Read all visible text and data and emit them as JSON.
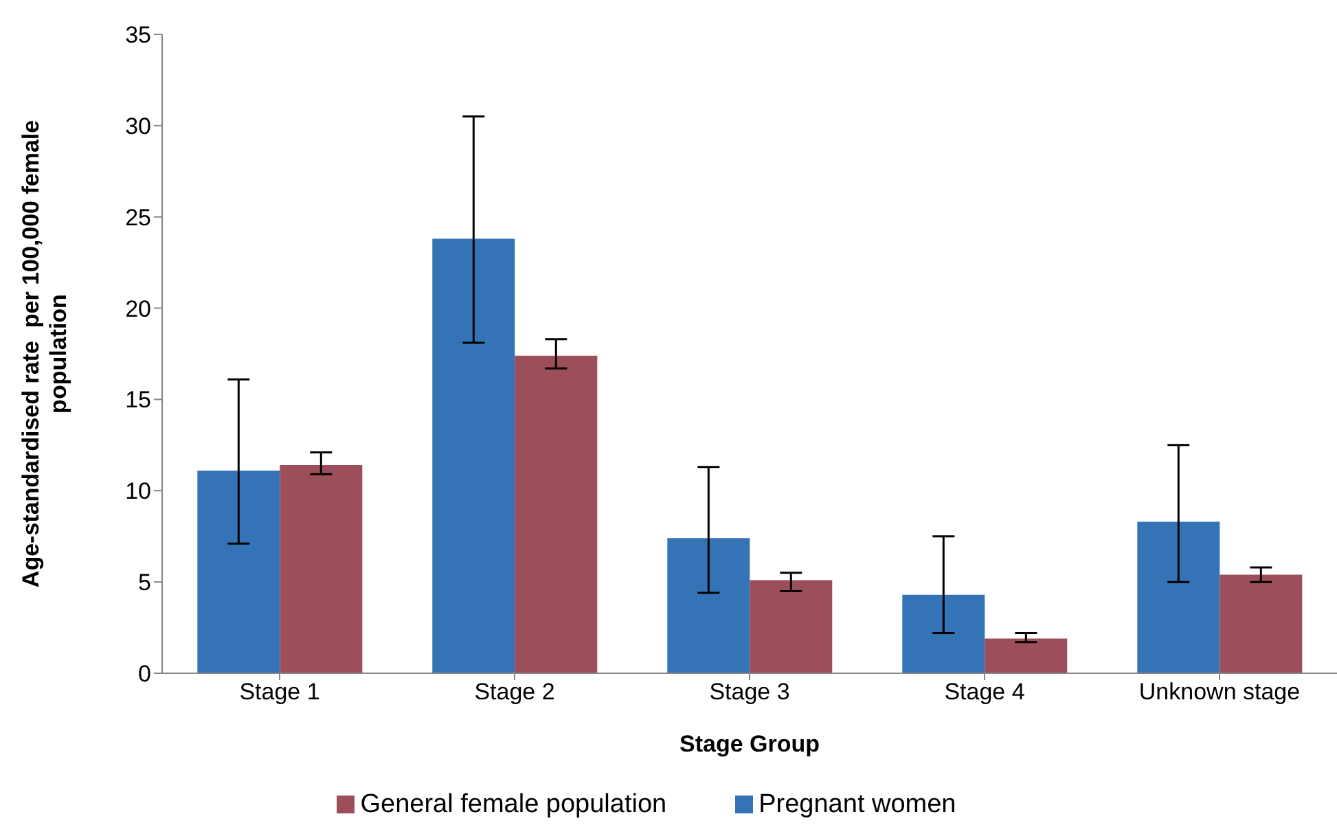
{
  "chart_data": {
    "type": "bar",
    "xlabel": "Stage Group",
    "ylabel": "Age-standardised rate  per 100,000 female population",
    "categories": [
      "Stage 1",
      "Stage 2",
      "Stage 3",
      "Stage 4",
      "Unknown stage"
    ],
    "series": [
      {
        "name": "Pregnant women",
        "color": "#3474b6",
        "values": [
          11.1,
          23.8,
          7.4,
          4.3,
          8.3
        ],
        "errors": [
          [
            7.1,
            16.1
          ],
          [
            18.1,
            30.5
          ],
          [
            4.4,
            11.3
          ],
          [
            2.2,
            7.5
          ],
          [
            5.0,
            12.5
          ]
        ]
      },
      {
        "name": "General female population",
        "color": "#9c4f5a",
        "values": [
          11.4,
          17.4,
          5.1,
          1.9,
          5.4
        ],
        "errors": [
          [
            10.9,
            12.1
          ],
          [
            16.7,
            18.3
          ],
          [
            4.5,
            5.5
          ],
          [
            1.7,
            2.2
          ],
          [
            5.0,
            5.8
          ]
        ]
      }
    ],
    "ylim": [
      0,
      35
    ],
    "yticks": [
      0,
      5,
      10,
      15,
      20,
      25,
      30,
      35
    ],
    "grid": false,
    "legend": "bottom"
  }
}
